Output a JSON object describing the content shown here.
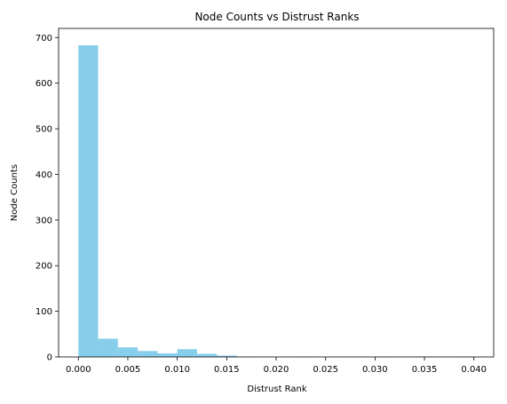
{
  "chart_data": {
    "type": "bar",
    "title": "Node Counts vs Distrust Ranks",
    "xlabel": "Distrust Rank",
    "ylabel": "Node Counts",
    "xlim": [
      -0.002,
      0.042
    ],
    "ylim": [
      0,
      720
    ],
    "xticks": [
      0.0,
      0.005,
      0.01,
      0.015,
      0.02,
      0.025,
      0.03,
      0.035,
      0.04
    ],
    "xtick_labels": [
      "0.000",
      "0.005",
      "0.010",
      "0.015",
      "0.020",
      "0.025",
      "0.030",
      "0.035",
      "0.040"
    ],
    "yticks": [
      0,
      100,
      200,
      300,
      400,
      500,
      600,
      700
    ],
    "ytick_labels": [
      "0",
      "100",
      "200",
      "300",
      "400",
      "500",
      "600",
      "700"
    ],
    "bin_edges": [
      0.0,
      0.002,
      0.004,
      0.006,
      0.008,
      0.01,
      0.012,
      0.014,
      0.016,
      0.018,
      0.02,
      0.022,
      0.024,
      0.026,
      0.028,
      0.03,
      0.032,
      0.034,
      0.036,
      0.038,
      0.04
    ],
    "counts": [
      683,
      40,
      21,
      13,
      8,
      17,
      7,
      3,
      1,
      0,
      0,
      1,
      0,
      0,
      0,
      1,
      0,
      1,
      0,
      1
    ],
    "bar_color": "#87CEEB",
    "grid": false
  }
}
